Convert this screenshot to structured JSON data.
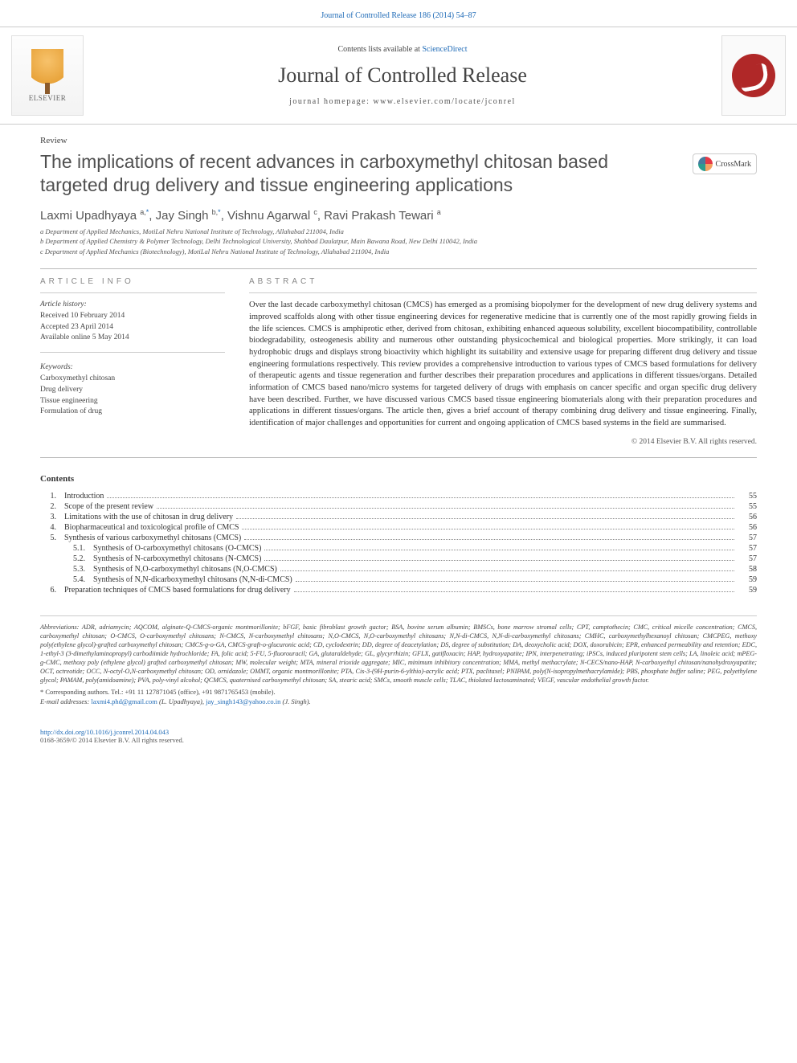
{
  "top_link": "Journal of Controlled Release 186 (2014) 54–87",
  "header": {
    "publisher": "ELSEVIER",
    "contents_prefix": "Contents lists available at ",
    "contents_link": "ScienceDirect",
    "journal": "Journal of Controlled Release",
    "homepage_label": "journal homepage: ",
    "homepage_url": "www.elsevier.com/locate/jconrel"
  },
  "article": {
    "type": "Review",
    "title": "The implications of recent advances in carboxymethyl chitosan based targeted drug delivery and tissue engineering applications",
    "crossmark": "CrossMark",
    "authors_html": "Laxmi Upadhyaya <sup>a,</sup><sup class=\"corr\">*</sup>, Jay Singh <sup>b,</sup><sup class=\"corr\">*</sup>, Vishnu Agarwal <sup>c</sup>, Ravi Prakash Tewari <sup>a</sup>",
    "affiliations": [
      "a Department of Applied Mechanics, MotiLal Nehru National Institute of Technology, Allahabad 211004, India",
      "b Department of Applied Chemistry & Polymer Technology, Delhi Technological University, Shahbad Daulatpur, Main Bawana Road, New Delhi 110042, India",
      "c Department of Applied Mechanics (Biotechnology), MotiLal Nehru National Institute of Technology, Allahabad 211004, India"
    ]
  },
  "info": {
    "head": "article info",
    "history_label": "Article history:",
    "received": "Received 10 February 2014",
    "accepted": "Accepted 23 April 2014",
    "online": "Available online 5 May 2014",
    "keywords_label": "Keywords:",
    "keywords": [
      "Carboxymethyl chitosan",
      "Drug delivery",
      "Tissue engineering",
      "Formulation of drug"
    ]
  },
  "abstract": {
    "head": "abstract",
    "text": "Over the last decade carboxymethyl chitosan (CMCS) has emerged as a promising biopolymer for the development of new drug delivery systems and improved scaffolds along with other tissue engineering devices for regenerative medicine that is currently one of the most rapidly growing fields in the life sciences. CMCS is amphiprotic ether, derived from chitosan, exhibiting enhanced aqueous solubility, excellent biocompatibility, controllable biodegradability, osteogenesis ability and numerous other outstanding physicochemical and biological properties. More strikingly, it can load hydrophobic drugs and displays strong bioactivity which highlight its suitability and extensive usage for preparing different drug delivery and tissue engineering formulations respectively. This review provides a comprehensive introduction to various types of CMCS based formulations for delivery of therapeutic agents and tissue regeneration and further describes their preparation procedures and applications in different tissues/organs. Detailed information of CMCS based nano/micro systems for targeted delivery of drugs with emphasis on cancer specific and organ specific drug delivery have been described. Further, we have discussed various CMCS based tissue engineering biomaterials along with their preparation procedures and applications in different tissues/organs. The article then, gives a brief account of therapy combining drug delivery and tissue engineering. Finally, identification of major challenges and opportunities for current and ongoing application of CMCS based systems in the field are summarised.",
    "copyright": "© 2014 Elsevier B.V. All rights reserved."
  },
  "contents": {
    "head": "Contents",
    "items": [
      {
        "num": "1.",
        "title": "Introduction",
        "page": "55"
      },
      {
        "num": "2.",
        "title": "Scope of the present review",
        "page": "55"
      },
      {
        "num": "3.",
        "title": "Limitations with the use of chitosan in drug delivery",
        "page": "56"
      },
      {
        "num": "4.",
        "title": "Biopharmaceutical and toxicological profile of CMCS",
        "page": "56"
      },
      {
        "num": "5.",
        "title": "Synthesis of various carboxymethyl chitosans (CMCS)",
        "page": "57"
      },
      {
        "num": "5.1.",
        "title": "Synthesis of O-carboxymethyl chitosans (O-CMCS)",
        "page": "57",
        "sub": true
      },
      {
        "num": "5.2.",
        "title": "Synthesis of N-carboxymethyl chitosans (N-CMCS)",
        "page": "57",
        "sub": true
      },
      {
        "num": "5.3.",
        "title": "Synthesis of N,O-carboxymethyl chitosans (N,O-CMCS)",
        "page": "58",
        "sub": true
      },
      {
        "num": "5.4.",
        "title": "Synthesis of N,N-dicarboxymethyl chitosans (N,N-di-CMCS)",
        "page": "59",
        "sub": true
      },
      {
        "num": "6.",
        "title": "Preparation techniques of CMCS based formulations for drug delivery",
        "page": "59"
      }
    ]
  },
  "abbrev": {
    "label": "Abbreviations: ",
    "text": "ADR, adriamycin; AQCOM, alginate-Q-CMCS-organic montmorillonite; bFGF, basic fibroblast growth gactor; BSA, bovine serum albumin; BMSCs, bone marrow stromal cells; CPT, camptothecin; CMC, critical micelle concentration; CMCS, carboxymethyl chitosan; O-CMCS, O-carboxymethyl chitosans; N-CMCS, N-carboxymethyl chitosans; N,O-CMCS, N,O-carboxymethyl chitosans; N,N-di-CMCS, N,N-di-carboxymethyl chitosans; CMHC, carboxymethylhexanoyl chitosan; CMCPEG, methoxy poly(ethylene glycol)-grafted carboxymethyl chitosan; CMCS-g-o-GA, CMCS-graft-o-glucuronic acid; CD, cyclodextrin; DD, degree of deacetylation; DS, degree of substitution; DA, deoxycholic acid; DOX, doxorubicin; EPR, enhanced permeability and retention; EDC, 1-ethyl-3 (3-dimethylaminopropyl) carbodiimide hydrochloride; FA, folic acid; 5-FU, 5-fluorouracil; GA, glutaraldehyde; GL, glycyrrhizin; GFLX, gatifloxacin; HAP, hydroxyapatite; IPN, interpenetrating; iPSCs, induced pluripotent stem cells; LA, linoleic acid; mPEG-g-CMC, methoxy poly (ethylene glycol) grafted carboxymethyl chitosan; MW, molecular weight; MTA, mineral trioxide aggregate; MIC, minimum inhibitory concentration; MMA, methyl methacrylate; N-CECS/nano-HAP, N-carboxyethyl chitosan/nanohydroxyapatite; OCT, octreotide; OCC, N-octyl-O,N-carboxymethyl chitosan; OD, ornidazole; OMMT, organic montmorillonite; PTA, Cis-3-(9H-purin-6-ylthio)-acrylic acid; PTX, paclitaxel; PNIPAM, poly(N-isopropylmethacrylamide); PBS, phosphate buffer saline; PEG, polyethylene glycol; PAMAM, poly(amidoamine); PVA, poly-vinyl alcohol; QCMCS, quaternised carboxymethyl chitosan; SA, stearic acid; SMCs, smooth muscle cells; TLAC, thiolated lactosaminated; VEGF, vascular endothelial growth factor."
  },
  "corr": {
    "line": "* Corresponding authors. Tel.: +91 11 127871045 (office), +91 9871765453 (mobile).",
    "email_label": "E-mail addresses: ",
    "email1": "laxmi4.phd@gmail.com",
    "email1_who": " (L. Upadhyaya), ",
    "email2": "jay_singh143@yahoo.co.in",
    "email2_who": " (J. Singh)."
  },
  "footer": {
    "doi": "http://dx.doi.org/10.1016/j.jconrel.2014.04.043",
    "issn": "0168-3659/© 2014 Elsevier B.V. All rights reserved."
  },
  "colors": {
    "link": "#1f6bb7",
    "text": "#333333",
    "muted": "#888888"
  }
}
